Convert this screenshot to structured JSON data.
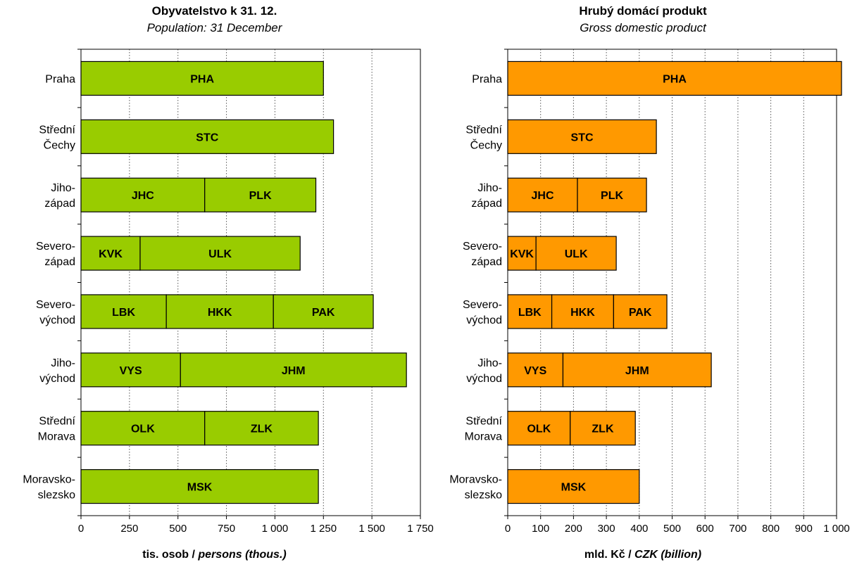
{
  "chart_data": [
    {
      "type": "bar",
      "orientation": "horizontal",
      "stacked": true,
      "title": "Obyvatelstvo k 31. 12.",
      "subtitle": "Population: 31 December",
      "xlabel": {
        "cz": "tis. osob / ",
        "en": "persons (thous.)"
      },
      "xlim": [
        0,
        1750
      ],
      "xticks": [
        0,
        250,
        500,
        750,
        1000,
        1250,
        1500,
        1750
      ],
      "xtick_labels": [
        "0",
        "250",
        "500",
        "750",
        "1 000",
        "1 250",
        "1 500",
        "1 750"
      ],
      "grid": "vertical dotted",
      "bar_color": "#99cc00",
      "categories": [
        {
          "label": [
            "Praha"
          ],
          "segments": [
            {
              "code": "PHA",
              "value": 1250
            }
          ]
        },
        {
          "label": [
            "Střední",
            "Čechy"
          ],
          "segments": [
            {
              "code": "STC",
              "value": 1302
            }
          ]
        },
        {
          "label": [
            "Jiho-",
            "západ"
          ],
          "segments": [
            {
              "code": "JHC",
              "value": 638
            },
            {
              "code": "PLK",
              "value": 573
            }
          ]
        },
        {
          "label": [
            "Severo-",
            "západ"
          ],
          "segments": [
            {
              "code": "KVK",
              "value": 305
            },
            {
              "code": "ULK",
              "value": 825
            }
          ]
        },
        {
          "label": [
            "Severo-",
            "východ"
          ],
          "segments": [
            {
              "code": "LBK",
              "value": 440
            },
            {
              "code": "HKK",
              "value": 552
            },
            {
              "code": "PAK",
              "value": 515
            }
          ]
        },
        {
          "label": [
            "Jiho-",
            "východ"
          ],
          "segments": [
            {
              "code": "VYS",
              "value": 513
            },
            {
              "code": "JHM",
              "value": 1165
            }
          ]
        },
        {
          "label": [
            "Střední",
            "Morava"
          ],
          "segments": [
            {
              "code": "OLK",
              "value": 638
            },
            {
              "code": "ZLK",
              "value": 586
            }
          ]
        },
        {
          "label": [
            "Moravsko-",
            "slezsko"
          ],
          "segments": [
            {
              "code": "MSK",
              "value": 1224
            }
          ]
        }
      ]
    },
    {
      "type": "bar",
      "orientation": "horizontal",
      "stacked": true,
      "title": "Hrubý domácí produkt",
      "subtitle": "Gross domestic product",
      "xlabel": {
        "cz": "mld. Kč / ",
        "en": "CZK (billion)"
      },
      "xlim": [
        0,
        1000
      ],
      "xticks": [
        0,
        100,
        200,
        300,
        400,
        500,
        600,
        700,
        800,
        900,
        1000
      ],
      "xtick_labels": [
        "0",
        "100",
        "200",
        "300",
        "400",
        "500",
        "600",
        "700",
        "800",
        "900",
        "1 000"
      ],
      "grid": "vertical dotted",
      "bar_color": "#ff9900",
      "categories": [
        {
          "label": [
            "Praha"
          ],
          "segments": [
            {
              "code": "PHA",
              "value": 1015
            }
          ]
        },
        {
          "label": [
            "Střední",
            "Čechy"
          ],
          "segments": [
            {
              "code": "STC",
              "value": 452
            }
          ]
        },
        {
          "label": [
            "Jiho-",
            "západ"
          ],
          "segments": [
            {
              "code": "JHC",
              "value": 212
            },
            {
              "code": "PLK",
              "value": 210
            }
          ]
        },
        {
          "label": [
            "Severo-",
            "západ"
          ],
          "segments": [
            {
              "code": "KVK",
              "value": 86
            },
            {
              "code": "ULK",
              "value": 244
            }
          ]
        },
        {
          "label": [
            "Severo-",
            "východ"
          ],
          "segments": [
            {
              "code": "LBK",
              "value": 134
            },
            {
              "code": "HKK",
              "value": 188
            },
            {
              "code": "PAK",
              "value": 162
            }
          ]
        },
        {
          "label": [
            "Jiho-",
            "východ"
          ],
          "segments": [
            {
              "code": "VYS",
              "value": 168
            },
            {
              "code": "JHM",
              "value": 451
            }
          ]
        },
        {
          "label": [
            "Střední",
            "Morava"
          ],
          "segments": [
            {
              "code": "OLK",
              "value": 190
            },
            {
              "code": "ZLK",
              "value": 198
            }
          ]
        },
        {
          "label": [
            "Moravsko-",
            "slezsko"
          ],
          "segments": [
            {
              "code": "MSK",
              "value": 400
            }
          ]
        }
      ]
    }
  ]
}
